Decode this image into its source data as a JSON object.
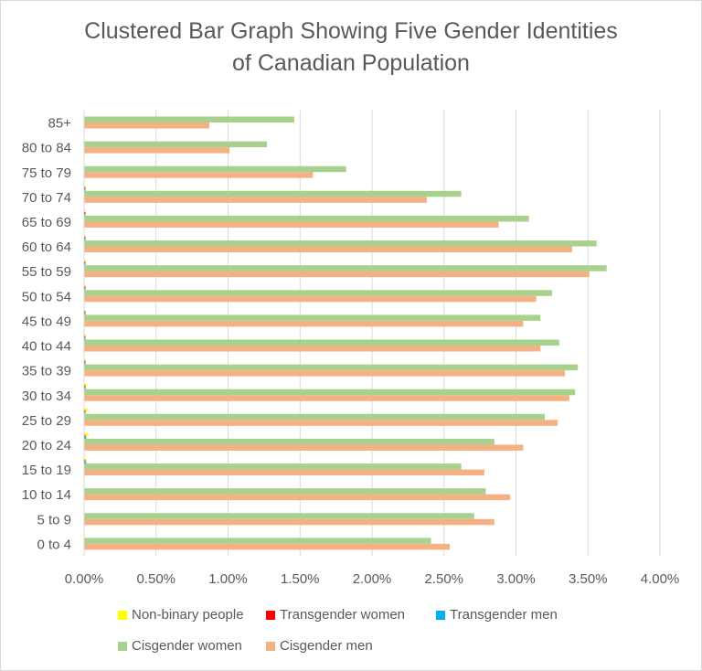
{
  "chart_data": {
    "type": "bar",
    "orientation": "horizontal",
    "title": "Clustered Bar Graph Showing Five Gender Identities of Canadian Population",
    "title_lines": [
      "Clustered Bar Graph Showing Five Gender Identities",
      "of Canadian Population"
    ],
    "categories": [
      "0 to 4",
      "5 to 9",
      "10 to 14",
      "15 to 19",
      "20 to 24",
      "25 to 29",
      "30 to 34",
      "35 to 39",
      "40 to 44",
      "45 to 49",
      "50 to 54",
      "55 to 59",
      "60 to 64",
      "65 to 69",
      "70 to 74",
      "75 to 79",
      "80 to 84",
      "85+"
    ],
    "series": [
      {
        "name": "Non-binary people",
        "color": "#FFFF00",
        "values": [
          0,
          0,
          0,
          0.015,
          0.03,
          0.03,
          0.02,
          0.008,
          0.004,
          0.003,
          0.003,
          0.002,
          0.002,
          0.002,
          0.001,
          0,
          0,
          0
        ]
      },
      {
        "name": "Transgender women",
        "color": "#FF0000",
        "values": [
          0,
          0,
          0,
          0.006,
          0.008,
          0.008,
          0.006,
          0.008,
          0.008,
          0.007,
          0.007,
          0.008,
          0.008,
          0.006,
          0.004,
          0,
          0,
          0
        ]
      },
      {
        "name": "Transgender men",
        "color": "#00B0F0",
        "values": [
          0,
          0,
          0,
          0.015,
          0.015,
          0.008,
          0.006,
          0.004,
          0.003,
          0.003,
          0.003,
          0.002,
          0.002,
          0.002,
          0.001,
          0,
          0,
          0
        ]
      },
      {
        "name": "Cisgender women",
        "color": "#A9D18E",
        "values": [
          2.41,
          2.71,
          2.79,
          2.62,
          2.85,
          3.2,
          3.41,
          3.43,
          3.3,
          3.17,
          3.25,
          3.63,
          3.56,
          3.09,
          2.62,
          1.82,
          1.27,
          1.46
        ]
      },
      {
        "name": "Cisgender men",
        "color": "#F4B183",
        "values": [
          2.54,
          2.85,
          2.96,
          2.78,
          3.05,
          3.29,
          3.37,
          3.34,
          3.17,
          3.05,
          3.14,
          3.51,
          3.39,
          2.88,
          2.38,
          1.59,
          1.01,
          0.87
        ]
      }
    ],
    "xlim": [
      0,
      4
    ],
    "x_ticks": [
      "0.00%",
      "0.50%",
      "1.00%",
      "1.50%",
      "2.00%",
      "2.50%",
      "3.00%",
      "3.50%",
      "4.00%"
    ],
    "x_tick_values": [
      0,
      0.5,
      1,
      1.5,
      2,
      2.5,
      3,
      3.5,
      4
    ],
    "xlabel": "",
    "ylabel": "",
    "grid": "vertical",
    "legend_position": "bottom"
  }
}
